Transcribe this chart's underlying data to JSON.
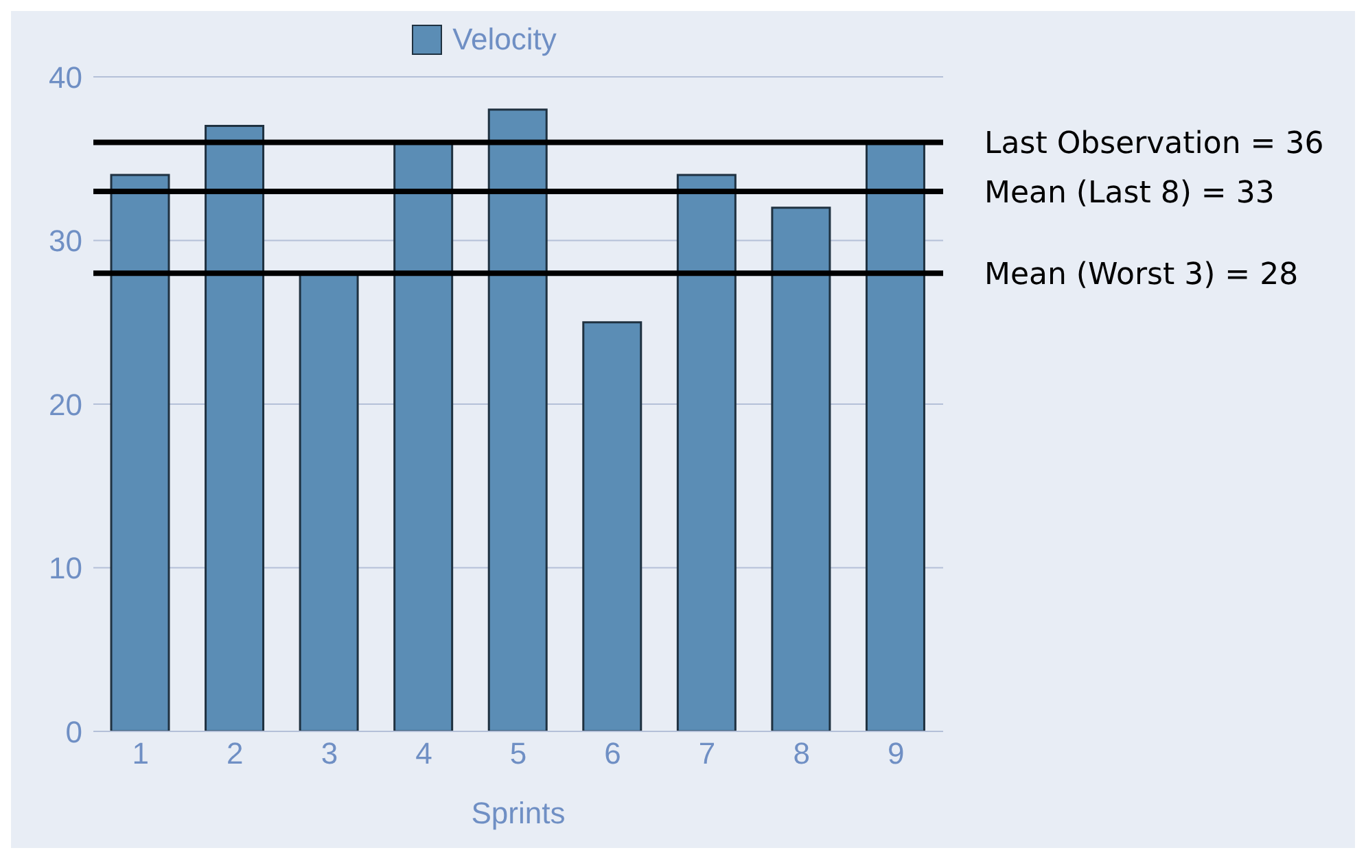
{
  "chart_data": {
    "type": "bar",
    "xlabel": "Sprints",
    "categories": [
      "1",
      "2",
      "3",
      "4",
      "5",
      "6",
      "7",
      "8",
      "9"
    ],
    "series": [
      {
        "name": "Velocity",
        "color": "#5b8db5",
        "values": [
          34,
          37,
          28,
          36,
          38,
          25,
          34,
          32,
          36
        ]
      }
    ],
    "ylim": [
      0,
      40
    ],
    "yticks": [
      0,
      10,
      20,
      30,
      40
    ],
    "grid": "y",
    "legend": "top",
    "ref_lines": [
      {
        "axis": "y",
        "value": 36,
        "label": "Last Observation = 36",
        "color": "#000000"
      },
      {
        "axis": "y",
        "value": 33,
        "label": "Mean (Last 8) = 33",
        "color": "#000000"
      },
      {
        "axis": "y",
        "value": 28,
        "label": "Mean (Worst 3) = 28",
        "color": "#000000"
      }
    ]
  }
}
